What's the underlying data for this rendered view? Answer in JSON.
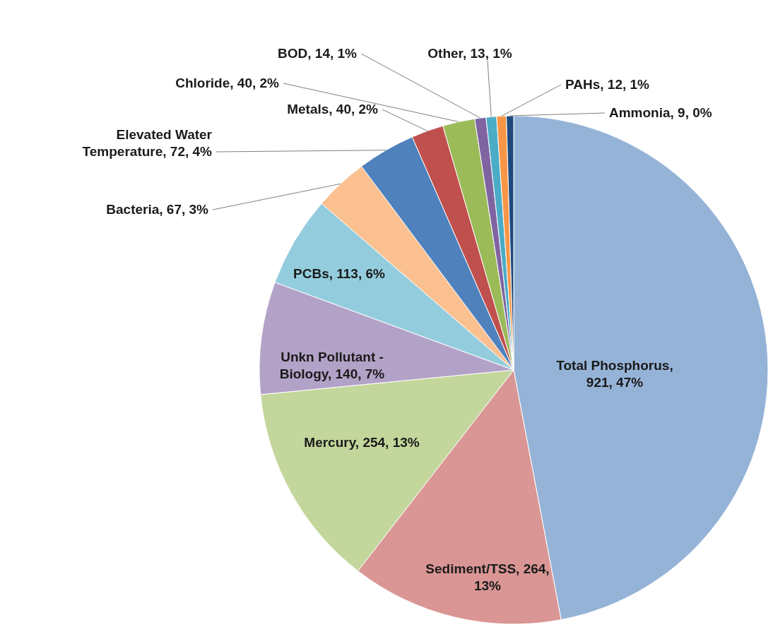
{
  "chart_data": {
    "type": "pie",
    "categories": [
      "Total Phosphorus",
      "Sediment/TSS",
      "Mercury",
      "Unkn Pollutant - Biology",
      "PCBs",
      "Bacteria",
      "Elevated Water Temperature",
      "Metals",
      "Chloride",
      "BOD",
      "Other",
      "PAHs",
      "Ammonia"
    ],
    "values": [
      921,
      264,
      254,
      140,
      113,
      67,
      72,
      40,
      40,
      14,
      13,
      12,
      9
    ],
    "value_labels": [
      ", 921, 47%",
      ", 264, 13%",
      ", 254, 13%",
      ", 140, 7%",
      ", 113, 6%",
      ", 67, 3%",
      ", 72, 4%",
      ", 40, 2%",
      ", 40, 2%",
      ", 14, 1%",
      ", 13, 1%",
      ", 12, 1%",
      ", 9, 0%"
    ],
    "colors": [
      "#95b3d7",
      "#d99694",
      "#c3d69b",
      "#b3a2c7",
      "#93cddd",
      "#fac090",
      "#4f81bd",
      "#c0504d",
      "#9bbb59",
      "#8064a2",
      "#4bacc6",
      "#f79646",
      "#1f497d"
    ]
  }
}
